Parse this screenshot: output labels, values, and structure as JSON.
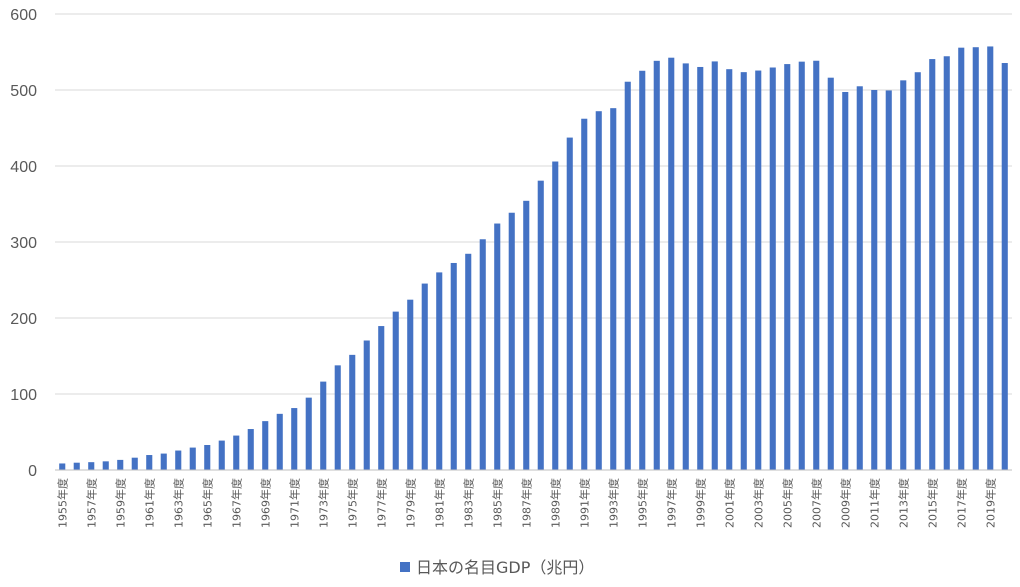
{
  "chart_data": {
    "type": "bar",
    "series": [
      {
        "name": "日本の名目GDP（兆円）",
        "color": "#4472C4",
        "values": [
          8.6,
          9.6,
          10.3,
          11.4,
          13.3,
          16.2,
          19.7,
          21.6,
          25.6,
          29.5,
          32.9,
          38.7,
          45.3,
          53.9,
          64.3,
          73.9,
          81.5,
          95.2,
          116.3,
          137.7,
          151.5,
          170.4,
          189.4,
          208.4,
          224.1,
          245.3,
          260.0,
          272.4,
          284.5,
          303.6,
          324.3,
          338.5,
          354.2,
          380.7,
          405.9,
          437.4,
          462.2,
          472.1,
          476.1,
          510.9,
          525.3,
          538.4,
          542.5,
          535.0,
          530.3,
          537.6,
          527.4,
          523.5,
          525.6,
          529.6,
          534.1,
          537.3,
          538.5,
          516.2,
          497.4,
          504.9,
          500.0,
          499.4,
          512.7,
          523.4,
          540.7,
          544.4,
          555.7,
          556.3,
          557.3,
          535.5
        ]
      }
    ],
    "categories": [
      "1955年度",
      "1956年度",
      "1957年度",
      "1958年度",
      "1959年度",
      "1960年度",
      "1961年度",
      "1962年度",
      "1963年度",
      "1964年度",
      "1965年度",
      "1966年度",
      "1967年度",
      "1968年度",
      "1969年度",
      "1970年度",
      "1971年度",
      "1972年度",
      "1973年度",
      "1974年度",
      "1975年度",
      "1976年度",
      "1977年度",
      "1978年度",
      "1979年度",
      "1980年度",
      "1981年度",
      "1982年度",
      "1983年度",
      "1984年度",
      "1985年度",
      "1986年度",
      "1987年度",
      "1988年度",
      "1989年度",
      "1990年度",
      "1991年度",
      "1992年度",
      "1993年度",
      "1994年度",
      "1995年度",
      "1996年度",
      "1997年度",
      "1998年度",
      "1999年度",
      "2000年度",
      "2001年度",
      "2002年度",
      "2003年度",
      "2004年度",
      "2005年度",
      "2006年度",
      "2007年度",
      "2008年度",
      "2009年度",
      "2010年度",
      "2011年度",
      "2012年度",
      "2013年度",
      "2014年度",
      "2015年度",
      "2016年度",
      "2017年度",
      "2018年度",
      "2019年度",
      "2020年度"
    ],
    "visible_x_tick_labels": [
      "1955年度",
      "1957年度",
      "1959年度",
      "1961年度",
      "1963年度",
      "1965年度",
      "1967年度",
      "1969年度",
      "1971年度",
      "1973年度",
      "1975年度",
      "1977年度",
      "1979年度",
      "1981年度",
      "1983年度",
      "1985年度",
      "1987年度",
      "1989年度",
      "1991年度",
      "1993年度",
      "1995年度",
      "1997年度",
      "1999年度",
      "2001年度",
      "2003年度",
      "2005年度",
      "2007年度",
      "2009年度",
      "2011年度",
      "2013年度",
      "2015年度",
      "2017年度",
      "2019年度"
    ],
    "y_ticks": [
      "0",
      "100",
      "200",
      "300",
      "400",
      "500",
      "600"
    ],
    "ylim": [
      0,
      600
    ],
    "grid": true,
    "legend_position": "bottom"
  }
}
